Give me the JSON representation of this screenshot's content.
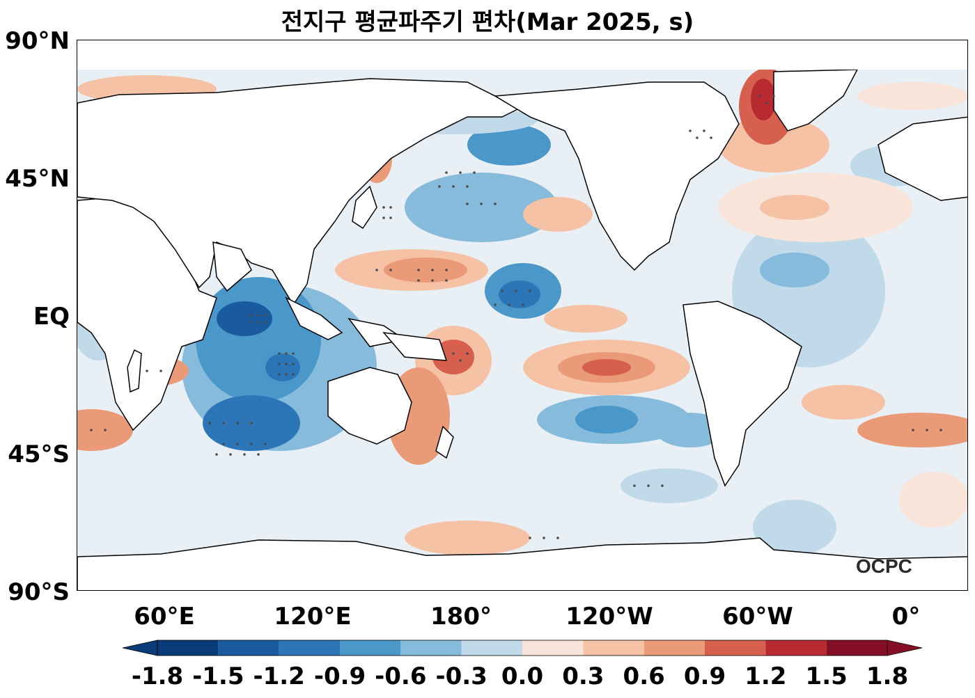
{
  "title": "전지구 평균파주기 편차(Mar 2025, s)",
  "y_axis_labels": [
    "90°N",
    "45°N",
    "EQ",
    "45°S",
    "90°S"
  ],
  "x_axis_labels": [
    "60°E",
    "120°E",
    "180°",
    "120°W",
    "60°W",
    "0°"
  ],
  "colorbar": {
    "ticks": [
      "-1.8",
      "-1.5",
      "-1.2",
      "-0.9",
      "-0.6",
      "-0.3",
      "0.0",
      "0.3",
      "0.6",
      "0.9",
      "1.2",
      "1.5",
      "1.8"
    ],
    "colors": [
      "#083b78",
      "#1a5a9e",
      "#2c76b8",
      "#4a97c9",
      "#86bbdb",
      "#c0daea",
      "#e8eff5",
      "#f9e4da",
      "#f6c2a6",
      "#eb9a78",
      "#d6604d",
      "#b82a32",
      "#850f27"
    ],
    "extend": "both"
  },
  "brand": {
    "label": "OCPC"
  },
  "map": {
    "projection": "plate carree, centered on 180°",
    "colors": {
      "land": "#ffffff",
      "coast": "#000000",
      "stipple": "#4a4a4a"
    }
  }
}
